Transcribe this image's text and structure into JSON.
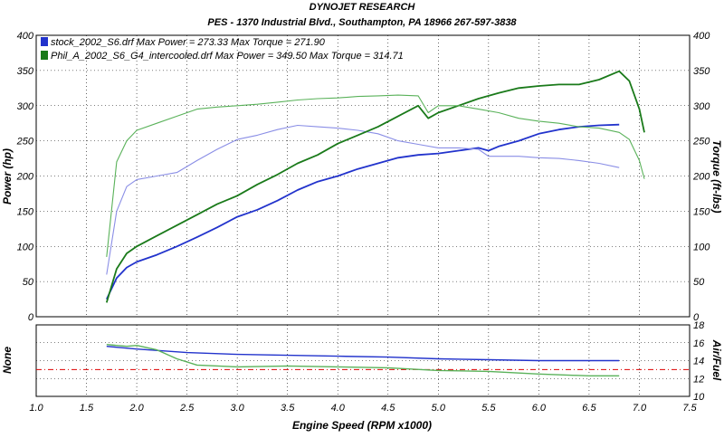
{
  "header": {
    "title": "DYNOJET RESEARCH",
    "subtitle": "PES - 1370 Industrial Blvd., Southampton, PA 18966  267-597-3838"
  },
  "colors": {
    "stock": "#2233cc",
    "stock_torque": "#8a8ee6",
    "phil": "#1a7a1a",
    "phil_torque": "#5ab25a",
    "afr_target": "#dd0000",
    "grid": "#000000"
  },
  "chart_data": [
    {
      "type": "line",
      "name": "main-power-torque",
      "xlabel": "Engine Speed (RPM x1000)",
      "ylabel": "Power (hp)",
      "y2label": "Torque (ft-lbs)",
      "xlim": [
        1.0,
        7.5
      ],
      "ylim": [
        0,
        400
      ],
      "y2lim": [
        0,
        400
      ],
      "x_ticks": [
        1.0,
        1.5,
        2.0,
        2.5,
        3.0,
        3.5,
        4.0,
        4.5,
        5.0,
        5.5,
        6.0,
        6.5,
        7.0,
        7.5
      ],
      "y_ticks": [
        0,
        50,
        100,
        150,
        200,
        250,
        300,
        350,
        400
      ],
      "grid": true,
      "legend_placement": "top-left",
      "legend": [
        "stock_2002_S6.drf Max Power = 273.33  Max Torque = 271.90",
        "Phil_A_2002_S6_G4_intercooled.drf Max Power = 349.50  Max Torque = 314.71"
      ],
      "series": [
        {
          "name": "stock_2002_S6.drf",
          "kind": "power",
          "color": "#2233cc",
          "x": [
            1.7,
            1.8,
            1.9,
            2.0,
            2.2,
            2.4,
            2.6,
            2.8,
            3.0,
            3.2,
            3.4,
            3.6,
            3.8,
            4.0,
            4.2,
            4.4,
            4.6,
            4.8,
            5.0,
            5.2,
            5.4,
            5.5,
            5.6,
            5.8,
            6.0,
            6.2,
            6.4,
            6.6,
            6.8
          ],
          "values": [
            25,
            55,
            70,
            78,
            88,
            100,
            113,
            127,
            142,
            152,
            165,
            180,
            192,
            200,
            210,
            218,
            226,
            230,
            232,
            236,
            240,
            236,
            242,
            250,
            260,
            266,
            270,
            272,
            273
          ]
        },
        {
          "name": "stock_2002_S6.drf",
          "kind": "torque",
          "color": "#8a8ee6",
          "x": [
            1.7,
            1.8,
            1.9,
            2.0,
            2.2,
            2.4,
            2.6,
            2.8,
            3.0,
            3.2,
            3.4,
            3.6,
            3.8,
            4.0,
            4.2,
            4.4,
            4.6,
            4.8,
            5.0,
            5.2,
            5.4,
            5.5,
            5.6,
            5.8,
            6.0,
            6.2,
            6.4,
            6.6,
            6.8
          ],
          "values": [
            60,
            150,
            185,
            195,
            200,
            205,
            222,
            238,
            252,
            258,
            266,
            272,
            270,
            268,
            265,
            260,
            250,
            245,
            240,
            240,
            238,
            228,
            228,
            228,
            226,
            225,
            222,
            218,
            212
          ]
        },
        {
          "name": "Phil_A_2002_S6_G4_intercooled.drf",
          "kind": "power",
          "color": "#1a7a1a",
          "x": [
            1.7,
            1.8,
            1.9,
            2.0,
            2.2,
            2.4,
            2.6,
            2.8,
            3.0,
            3.2,
            3.4,
            3.6,
            3.8,
            4.0,
            4.2,
            4.4,
            4.6,
            4.8,
            4.9,
            5.0,
            5.2,
            5.4,
            5.6,
            5.8,
            6.0,
            6.2,
            6.4,
            6.6,
            6.8,
            6.9,
            7.0,
            7.05
          ],
          "values": [
            20,
            68,
            90,
            100,
            115,
            130,
            145,
            160,
            172,
            188,
            202,
            218,
            230,
            246,
            258,
            270,
            285,
            300,
            282,
            290,
            300,
            310,
            318,
            325,
            328,
            330,
            330,
            337,
            349,
            335,
            295,
            262
          ]
        },
        {
          "name": "Phil_A_2002_S6_G4_intercooled.drf",
          "kind": "torque",
          "color": "#5ab25a",
          "x": [
            1.7,
            1.8,
            1.9,
            2.0,
            2.2,
            2.4,
            2.6,
            2.8,
            3.0,
            3.2,
            3.4,
            3.6,
            3.8,
            4.0,
            4.2,
            4.4,
            4.6,
            4.8,
            4.9,
            5.0,
            5.2,
            5.4,
            5.6,
            5.8,
            6.0,
            6.2,
            6.4,
            6.6,
            6.8,
            6.9,
            7.0,
            7.05
          ],
          "values": [
            85,
            220,
            250,
            265,
            275,
            285,
            295,
            298,
            300,
            302,
            305,
            308,
            310,
            311,
            313,
            314,
            315,
            314,
            290,
            300,
            300,
            295,
            290,
            282,
            278,
            275,
            270,
            268,
            262,
            252,
            222,
            196
          ]
        }
      ]
    },
    {
      "type": "line",
      "name": "air-fuel",
      "xlabel": "Engine Speed (RPM x1000)",
      "ylabel": "None",
      "y2label": "Air/Fuel",
      "xlim": [
        1.0,
        7.5
      ],
      "y2lim": [
        10,
        18
      ],
      "y2_ticks": [
        10,
        12,
        14,
        16,
        18
      ],
      "target": 13,
      "grid": true,
      "series": [
        {
          "name": "stock_2002_S6.drf",
          "color": "#2233cc",
          "x": [
            1.7,
            2.0,
            2.5,
            3.0,
            3.5,
            4.0,
            4.5,
            5.0,
            5.5,
            6.0,
            6.5,
            6.8
          ],
          "values": [
            15.6,
            15.3,
            14.9,
            14.7,
            14.6,
            14.5,
            14.4,
            14.2,
            14.1,
            14.0,
            14.0,
            14.0
          ]
        },
        {
          "name": "Phil_A_2002_S6_G4_intercooled.drf",
          "color": "#5ab25a",
          "x": [
            1.7,
            1.9,
            2.0,
            2.2,
            2.4,
            2.6,
            3.0,
            3.5,
            4.0,
            4.5,
            5.0,
            5.5,
            6.0,
            6.5,
            6.8
          ],
          "values": [
            15.8,
            15.6,
            15.7,
            15.2,
            14.2,
            13.5,
            13.3,
            13.4,
            13.3,
            13.2,
            12.9,
            12.8,
            12.5,
            12.3,
            12.3
          ]
        }
      ]
    }
  ]
}
